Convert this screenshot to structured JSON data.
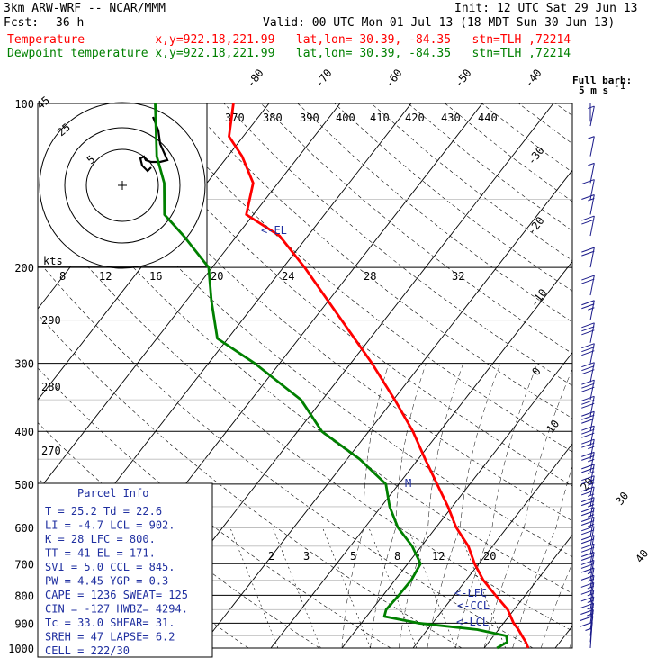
{
  "header": {
    "model": "3km ARW-WRF -- NCAR/MMM",
    "init": "Init: 12 UTC Sat 29 Jun 13",
    "fcst_label": "Fcst:",
    "fcst_value": "36 h",
    "valid": "Valid: 00 UTC Mon 01 Jul 13 (18 MDT Sun 30 Jun 13)",
    "temp_row": "Temperature          x,y=922.18,221.99   lat,lon= 30.39, -84.35   stn=TLH ,72214",
    "dew_row": "Dewpoint temperature x,y=922.18,221.99   lat,lon= 30.39, -84.35   stn=TLH ,72214"
  },
  "colors": {
    "temperature": "#ff0000",
    "dewpoint": "#008000",
    "info": "#1f2fa0",
    "barb": "#1a1a8a"
  },
  "pressure_labels": [
    "100",
    "200",
    "300",
    "400",
    "500",
    "600",
    "700",
    "800",
    "900",
    "1000"
  ],
  "isotherm_labels_top": [
    "-80",
    "-70",
    "-60",
    "-50",
    "-40"
  ],
  "isotherm_labels_right": [
    "-30",
    "-20",
    "-10",
    "0",
    "10",
    "20",
    "30",
    "40"
  ],
  "theta_labels": [
    "370",
    "380",
    "390",
    "400",
    "410",
    "420",
    "430",
    "440"
  ],
  "theta_labels_left": [
    "290",
    "280",
    "270"
  ],
  "mixing_labels": [
    "2",
    "3",
    "5",
    "8",
    "12",
    "20"
  ],
  "hodograph": {
    "units": "kts",
    "ring_labels": [
      "5",
      "25",
      "45"
    ],
    "speed_ticks": [
      "8",
      "12",
      "16",
      "20",
      "24",
      "28",
      "32"
    ]
  },
  "barb_legend": {
    "line1": "Full barb:",
    "line2": "5 m s",
    "sup": "-1"
  },
  "parcel_info": {
    "title": "Parcel Info",
    "rows": [
      "T   =   25.2  Td =   22.6",
      "LI  =   -4.7  LCL =  902.",
      "K   =     28  LFC =  800.",
      "TT  =     41  EL  =  171.",
      "SVI =    5.0  CCL =  845.",
      "PW  =   4.45  YGP =   0.3",
      "CAPE =  1236  SWEAT=  125",
      "CIN  =  -127  HWBZ= 4294.",
      "Tc   =  33.0  SHEAR=  31.",
      "SREH =    47  LAPSE=  6.2",
      "CELL = 222/30"
    ]
  },
  "level_markers": {
    "el": "<-EL",
    "lfc": "<-LFC",
    "ccl": "<-CCL",
    "lcl": "<-LCL",
    "m": "M"
  },
  "chart_data": {
    "type": "line",
    "title": "",
    "xlabel": "",
    "ylabel": "",
    "pressure_range_hPa": [
      100,
      1000
    ],
    "log_pressure_axis": true,
    "series": [
      {
        "name": "Temperature",
        "color": "#ff0000",
        "points": [
          [
            1000,
            26.2
          ],
          [
            975,
            25.2
          ],
          [
            950,
            24.0
          ],
          [
            925,
            22.8
          ],
          [
            900,
            21.4
          ],
          [
            850,
            19.1
          ],
          [
            800,
            15.8
          ],
          [
            750,
            12.4
          ],
          [
            700,
            9.4
          ],
          [
            650,
            6.6
          ],
          [
            600,
            2.8
          ],
          [
            550,
            -0.6
          ],
          [
            500,
            -4.6
          ],
          [
            450,
            -9.0
          ],
          [
            400,
            -13.8
          ],
          [
            350,
            -19.8
          ],
          [
            300,
            -27.0
          ],
          [
            250,
            -36.0
          ],
          [
            200,
            -47.0
          ],
          [
            175,
            -54.0
          ],
          [
            160,
            -61.0
          ],
          [
            140,
            -63.5
          ],
          [
            125,
            -68.0
          ],
          [
            115,
            -72.0
          ],
          [
            100,
            -75.0
          ]
        ]
      },
      {
        "name": "Dewpoint temperature",
        "color": "#008000",
        "points": [
          [
            1000,
            21.8
          ],
          [
            975,
            22.6
          ],
          [
            950,
            21.8
          ],
          [
            925,
            17.0
          ],
          [
            900,
            8.0
          ],
          [
            875,
            2.5
          ],
          [
            850,
            2.0
          ],
          [
            800,
            2.2
          ],
          [
            750,
            2.3
          ],
          [
            700,
            1.8
          ],
          [
            650,
            -1.3
          ],
          [
            600,
            -5.4
          ],
          [
            550,
            -8.8
          ],
          [
            500,
            -11.8
          ],
          [
            450,
            -18.2
          ],
          [
            400,
            -26.6
          ],
          [
            350,
            -33.0
          ],
          [
            300,
            -43.5
          ],
          [
            270,
            -51.5
          ],
          [
            230,
            -56.5
          ],
          [
            200,
            -60.5
          ],
          [
            175,
            -67.5
          ],
          [
            160,
            -72.5
          ],
          [
            140,
            -76.0
          ],
          [
            125,
            -80.0
          ],
          [
            100,
            -86.0
          ]
        ]
      }
    ],
    "wind_barbs_m_s": [
      {
        "p": 1000,
        "speed": 2.5,
        "dir": 200
      },
      {
        "p": 975,
        "speed": 5,
        "dir": 210
      },
      {
        "p": 950,
        "speed": 5,
        "dir": 220
      },
      {
        "p": 925,
        "speed": 7.5,
        "dir": 230
      },
      {
        "p": 900,
        "speed": 7.5,
        "dir": 235
      },
      {
        "p": 875,
        "speed": 7.5,
        "dir": 240
      },
      {
        "p": 850,
        "speed": 7.5,
        "dir": 240
      },
      {
        "p": 825,
        "speed": 7.5,
        "dir": 240
      },
      {
        "p": 800,
        "speed": 7.5,
        "dir": 245
      },
      {
        "p": 775,
        "speed": 7.5,
        "dir": 245
      },
      {
        "p": 750,
        "speed": 10,
        "dir": 245
      },
      {
        "p": 725,
        "speed": 10,
        "dir": 250
      },
      {
        "p": 700,
        "speed": 10,
        "dir": 250
      },
      {
        "p": 675,
        "speed": 10,
        "dir": 250
      },
      {
        "p": 650,
        "speed": 10,
        "dir": 250
      },
      {
        "p": 625,
        "speed": 12.5,
        "dir": 250
      },
      {
        "p": 600,
        "speed": 12.5,
        "dir": 250
      },
      {
        "p": 575,
        "speed": 12.5,
        "dir": 250
      },
      {
        "p": 550,
        "speed": 12.5,
        "dir": 250
      },
      {
        "p": 525,
        "speed": 12.5,
        "dir": 255
      },
      {
        "p": 500,
        "speed": 12.5,
        "dir": 255
      },
      {
        "p": 475,
        "speed": 12.5,
        "dir": 255
      },
      {
        "p": 450,
        "speed": 12.5,
        "dir": 255
      },
      {
        "p": 425,
        "speed": 15,
        "dir": 255
      },
      {
        "p": 400,
        "speed": 15,
        "dir": 255
      },
      {
        "p": 375,
        "speed": 15,
        "dir": 255
      },
      {
        "p": 350,
        "speed": 15,
        "dir": 260
      },
      {
        "p": 325,
        "speed": 15,
        "dir": 260
      },
      {
        "p": 300,
        "speed": 15,
        "dir": 260
      },
      {
        "p": 275,
        "speed": 15,
        "dir": 260
      },
      {
        "p": 250,
        "speed": 12.5,
        "dir": 260
      },
      {
        "p": 225,
        "speed": 10,
        "dir": 260
      },
      {
        "p": 200,
        "speed": 10,
        "dir": 260
      },
      {
        "p": 175,
        "speed": 10,
        "dir": 260
      },
      {
        "p": 160,
        "speed": 7.5,
        "dir": 260
      },
      {
        "p": 150,
        "speed": 5,
        "dir": 260
      },
      {
        "p": 140,
        "speed": 2.5,
        "dir": 260
      },
      {
        "p": 125,
        "speed": 2.5,
        "dir": 260
      },
      {
        "p": 110,
        "speed": 2.5,
        "dir": 260
      }
    ]
  }
}
